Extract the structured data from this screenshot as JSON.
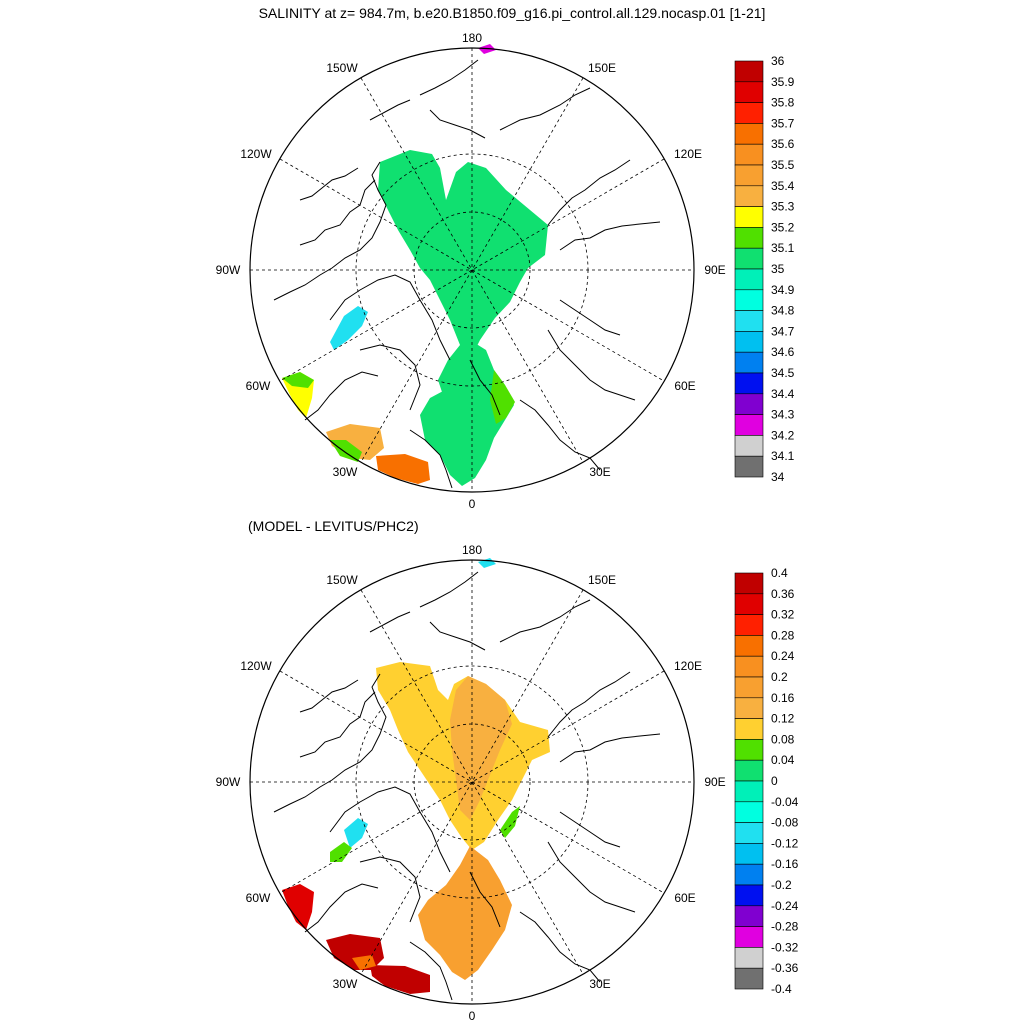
{
  "title": "SALINITY at z= 984.7m, b.e20.B1850.f09_g16.pi_control.all.129.nocasp.01 [1-21]",
  "subtitle": "(MODEL - LEVITUS/PHC2)",
  "lon_labels": {
    "top": "180",
    "top_left": "150W",
    "top_right": "150E",
    "upper_left": "120W",
    "upper_right": "120E",
    "left": "90W",
    "right": "90E",
    "lower_left": "60W",
    "lower_right": "60E",
    "bottom_left": "30W",
    "bottom_right": "30E",
    "bottom": "0"
  },
  "colorbar_top": {
    "labels": [
      "36",
      "35.9",
      "35.8",
      "35.7",
      "35.6",
      "35.5",
      "35.4",
      "35.3",
      "35.2",
      "35.1",
      "35",
      "34.9",
      "34.8",
      "34.7",
      "34.6",
      "34.5",
      "34.4",
      "34.3",
      "34.2",
      "34.1",
      "34"
    ],
    "colors": [
      "#c00000",
      "#e00000",
      "#ff2000",
      "#f87000",
      "#f89020",
      "#f8a030",
      "#f8b040",
      "#ffff00",
      "#50e000",
      "#10e070",
      "#00f0b8",
      "#00ffe0",
      "#20e0f0",
      "#00c0f0",
      "#0080f0",
      "#0010f0",
      "#8000d0",
      "#e000e0",
      "#d0d0d0",
      "#707070"
    ]
  },
  "colorbar_bottom": {
    "labels": [
      "0.4",
      "0.36",
      "0.32",
      "0.28",
      "0.24",
      "0.2",
      "0.16",
      "0.12",
      "0.08",
      "0.04",
      "0",
      "-0.04",
      "-0.08",
      "-0.12",
      "-0.16",
      "-0.2",
      "-0.24",
      "-0.28",
      "-0.32",
      "-0.36",
      "-0.4"
    ],
    "colors": [
      "#c00000",
      "#e00000",
      "#ff2000",
      "#f87000",
      "#f89020",
      "#f8a030",
      "#f8b040",
      "#ffd030",
      "#50e000",
      "#10e070",
      "#00f0b8",
      "#00ffe0",
      "#20e0f0",
      "#00c0f0",
      "#0080f0",
      "#0010f0",
      "#8000d0",
      "#e000e0",
      "#d0d0d0",
      "#707070"
    ]
  }
}
